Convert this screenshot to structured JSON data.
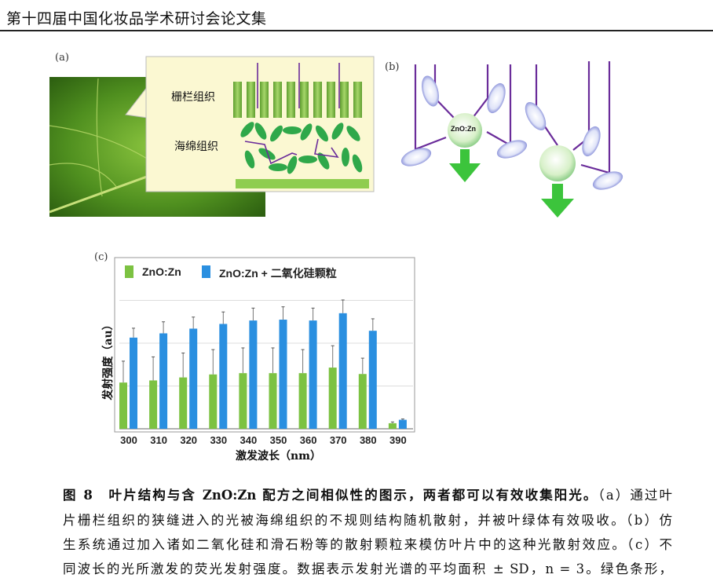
{
  "header": {
    "title": "第十四届中国化妆品学术研讨会论文集"
  },
  "figure": {
    "panel_a": {
      "label": "(a)",
      "palisade_label": "栅栏组织",
      "spongy_label": "海绵组织"
    },
    "panel_b": {
      "label": "(b)",
      "particle_label": "ZnO:Zn"
    },
    "panel_c": {
      "label": "(c)"
    }
  },
  "chart_data": {
    "type": "bar",
    "title": "",
    "xlabel": "激发波长（nm）",
    "ylabel": "发射强度（au）",
    "categories": [
      "300",
      "310",
      "320",
      "330",
      "340",
      "350",
      "360",
      "370",
      "380",
      "390"
    ],
    "ylim": [
      0,
      3.2
    ],
    "grid": true,
    "legend_position": "top",
    "y_tick_labels_shown": false,
    "series": [
      {
        "name": "ZnO:Zn",
        "color": "#7cc242",
        "values": [
          1.08,
          1.13,
          1.2,
          1.27,
          1.3,
          1.3,
          1.3,
          1.43,
          1.28,
          0.13
        ],
        "error": [
          0.5,
          0.55,
          0.57,
          0.58,
          0.59,
          0.59,
          0.55,
          0.51,
          0.37,
          0.03
        ]
      },
      {
        "name": "ZnO:Zn + 二氧化硅颗粒",
        "color": "#2a8fe0",
        "values": [
          2.13,
          2.23,
          2.34,
          2.45,
          2.53,
          2.55,
          2.53,
          2.7,
          2.29,
          0.21
        ],
        "error": [
          0.22,
          0.27,
          0.27,
          0.28,
          0.29,
          0.3,
          0.29,
          0.31,
          0.28,
          0.02
        ]
      }
    ]
  },
  "caption": {
    "line1_bold": "图 8　叶片结构与含 ZnO:Zn 配方之间相似性的图示，两者都可以有效收集阳光。",
    "line1_rest": "（a）通过叶",
    "line2": "片栅栏组织的狭缝进入的光被海绵组织的不规则结构随机散射，并被叶绿体有效吸收。（b）仿",
    "line3": "生系统通过加入诸如二氧化硅和滑石粉等的散射颗粒来模仿叶片中的这种光散射效应。（c）不",
    "line4": "同波长的光所激发的荧光发射强度。数据表示发射光谱的平均面积 ± SD，n = 3。绿色条形，"
  }
}
